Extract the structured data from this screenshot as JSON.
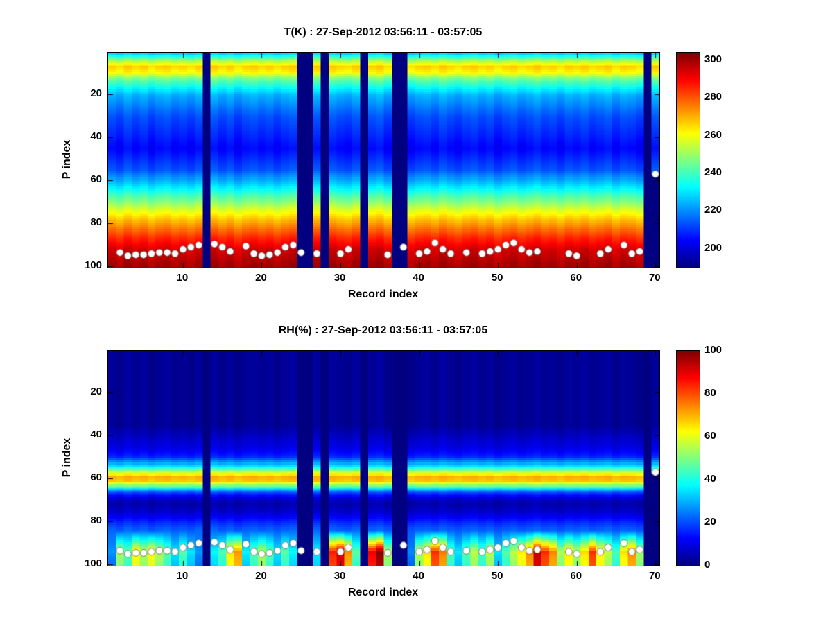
{
  "figure": {
    "background": "#ffffff",
    "axis_color": "#000000",
    "marker_color": "#ffffff"
  },
  "column_jitter": [
    0.3,
    -0.5,
    0.8,
    -0.2,
    0.5,
    -0.7,
    0.2,
    0.6,
    -0.4,
    0.1,
    -0.6,
    0.4,
    0.0,
    0.7,
    -0.3,
    0.5,
    -0.8,
    0.2,
    0.6,
    -0.1,
    0.4,
    -0.5,
    0.3,
    0.8,
    -0.2,
    0.1,
    0.5,
    -0.6,
    0.7,
    0.0,
    -0.4,
    0.6,
    -0.2,
    0.3,
    0.9,
    -0.5,
    0.1,
    0.4,
    -0.7,
    0.2,
    0.5,
    -0.3,
    0.8,
    0.0,
    -0.6,
    0.3,
    0.7,
    -0.2,
    0.4,
    -0.8,
    0.1,
    0.6,
    -0.4,
    0.2,
    0.9,
    -0.1,
    0.3,
    -0.6,
    0.5,
    0.0,
    0.7,
    -0.3,
    0.2,
    0.8,
    -0.5,
    0.4,
    0.1,
    -0.7,
    0.3,
    0.6
  ],
  "chart_data": [
    {
      "type": "heatmap",
      "title": "T(K) : 27-Sep-2012 03:56:11 - 03:57:05",
      "xlabel": "Record index",
      "ylabel": "P index",
      "x_range": [
        1,
        70
      ],
      "y_range": [
        1,
        100
      ],
      "y_axis": "reversed",
      "x_ticks": [
        10,
        20,
        30,
        40,
        50,
        60,
        70
      ],
      "y_ticks": [
        20,
        40,
        60,
        80,
        100
      ],
      "colormap": "jet",
      "clim": [
        190,
        304
      ],
      "colorbar_ticks": [
        200,
        220,
        240,
        260,
        280,
        300
      ],
      "jitter_scale": 2.5,
      "profile_p_vs_value": [
        [
          1,
          228
        ],
        [
          4,
          250
        ],
        [
          7,
          266
        ],
        [
          10,
          261
        ],
        [
          14,
          240
        ],
        [
          20,
          224
        ],
        [
          30,
          213
        ],
        [
          45,
          204
        ],
        [
          55,
          213
        ],
        [
          62,
          228
        ],
        [
          68,
          243
        ],
        [
          74,
          258
        ],
        [
          80,
          272
        ],
        [
          86,
          284
        ],
        [
          92,
          294
        ],
        [
          100,
          300
        ]
      ],
      "missing_record_columns": [
        13,
        25,
        26,
        28,
        33,
        37,
        38,
        69
      ],
      "partial_columns": [
        [
          70,
          57
        ]
      ],
      "surface_markers": [
        [
          2,
          93.5
        ],
        [
          3,
          95
        ],
        [
          4,
          94.5
        ],
        [
          5,
          94.5
        ],
        [
          6,
          94
        ],
        [
          7,
          93.5
        ],
        [
          8,
          93.5
        ],
        [
          9,
          94
        ],
        [
          10,
          92
        ],
        [
          11,
          91
        ],
        [
          12,
          90
        ],
        [
          14,
          89.5
        ],
        [
          15,
          91
        ],
        [
          16,
          93
        ],
        [
          18,
          90.5
        ],
        [
          19,
          94
        ],
        [
          20,
          95
        ],
        [
          21,
          94.5
        ],
        [
          22,
          93.5
        ],
        [
          23,
          91
        ],
        [
          24,
          90
        ],
        [
          25,
          93.5
        ],
        [
          27,
          94
        ],
        [
          30,
          94
        ],
        [
          31,
          92
        ],
        [
          36,
          94.5
        ],
        [
          38,
          91
        ],
        [
          40,
          94
        ],
        [
          41,
          93
        ],
        [
          42,
          89
        ],
        [
          43,
          92
        ],
        [
          44,
          94
        ],
        [
          46,
          93.5
        ],
        [
          48,
          94
        ],
        [
          49,
          93
        ],
        [
          50,
          92
        ],
        [
          51,
          90
        ],
        [
          52,
          89
        ],
        [
          53,
          92
        ],
        [
          54,
          93.5
        ],
        [
          55,
          93
        ],
        [
          59,
          94
        ],
        [
          60,
          95
        ],
        [
          63,
          94
        ],
        [
          64,
          92
        ],
        [
          66,
          90
        ],
        [
          67,
          94
        ],
        [
          68,
          93
        ],
        [
          70,
          57
        ]
      ]
    },
    {
      "type": "heatmap",
      "title": "RH(%) : 27-Sep-2012 03:56:11 - 03:57:05",
      "xlabel": "Record index",
      "ylabel": "P index",
      "x_range": [
        1,
        70
      ],
      "y_range": [
        1,
        100
      ],
      "y_axis": "reversed",
      "x_ticks": [
        10,
        20,
        30,
        40,
        50,
        60,
        70
      ],
      "y_ticks": [
        20,
        40,
        60,
        80,
        100
      ],
      "colormap": "jet",
      "clim": [
        0,
        100
      ],
      "colorbar_ticks": [
        0,
        20,
        40,
        60,
        80,
        100
      ],
      "jitter_scale": 1.5,
      "profile_p_vs_value": [
        [
          1,
          2
        ],
        [
          35,
          2
        ],
        [
          40,
          6
        ],
        [
          46,
          10
        ],
        [
          50,
          16
        ],
        [
          54,
          34
        ],
        [
          57,
          58
        ],
        [
          59,
          70
        ],
        [
          61,
          68
        ],
        [
          63,
          52
        ],
        [
          66,
          22
        ],
        [
          69,
          8
        ],
        [
          72,
          4
        ],
        [
          76,
          8
        ],
        [
          80,
          16
        ],
        [
          84,
          22
        ],
        [
          88,
          16
        ],
        [
          92,
          10
        ],
        [
          96,
          6
        ],
        [
          100,
          4
        ]
      ],
      "missing_record_columns": [
        13,
        25,
        26,
        28,
        33,
        37,
        38,
        69
      ],
      "partial_columns": [
        [
          70,
          57
        ]
      ],
      "bottom_boost": {
        "start_p": 84,
        "ramp": 10,
        "max_add": 95,
        "per_record": [
          0.2,
          0.5,
          0.4,
          0.6,
          0.5,
          0.6,
          0.5,
          0.4,
          0.3,
          0.4,
          0.3,
          0.2,
          0,
          0.3,
          0.4,
          0.6,
          0.7,
          0.3,
          0.4,
          0.5,
          0.4,
          0.3,
          0.4,
          0.3,
          0,
          0.4,
          0.3,
          0,
          0.8,
          0.9,
          0.7,
          0.4,
          0,
          0.85,
          0.95,
          0.5,
          0,
          0.3,
          0.2,
          0.5,
          0.6,
          0.8,
          0.7,
          0.4,
          0.3,
          0.4,
          0.5,
          0.4,
          0.5,
          0.3,
          0.4,
          0.5,
          0.6,
          0.7,
          0.9,
          0.8,
          0.7,
          0.5,
          0.6,
          0.5,
          0.6,
          0.8,
          0.6,
          0.5,
          0.4,
          0.6,
          0.7,
          0.5,
          0,
          0.3
        ]
      },
      "surface_markers": [
        [
          2,
          93.5
        ],
        [
          3,
          95
        ],
        [
          4,
          94.5
        ],
        [
          5,
          94.5
        ],
        [
          6,
          94
        ],
        [
          7,
          93.5
        ],
        [
          8,
          93.5
        ],
        [
          9,
          94
        ],
        [
          10,
          92
        ],
        [
          11,
          91
        ],
        [
          12,
          90
        ],
        [
          14,
          89.5
        ],
        [
          15,
          91
        ],
        [
          16,
          93
        ],
        [
          18,
          90.5
        ],
        [
          19,
          94
        ],
        [
          20,
          95
        ],
        [
          21,
          94.5
        ],
        [
          22,
          93.5
        ],
        [
          23,
          91
        ],
        [
          24,
          90
        ],
        [
          25,
          93.5
        ],
        [
          27,
          94
        ],
        [
          30,
          94
        ],
        [
          31,
          92
        ],
        [
          36,
          94.5
        ],
        [
          38,
          91
        ],
        [
          40,
          94
        ],
        [
          41,
          93
        ],
        [
          42,
          89
        ],
        [
          43,
          92
        ],
        [
          44,
          94
        ],
        [
          46,
          93.5
        ],
        [
          48,
          94
        ],
        [
          49,
          93
        ],
        [
          50,
          92
        ],
        [
          51,
          90
        ],
        [
          52,
          89
        ],
        [
          53,
          92
        ],
        [
          54,
          93.5
        ],
        [
          55,
          93
        ],
        [
          59,
          94
        ],
        [
          60,
          95
        ],
        [
          63,
          94
        ],
        [
          64,
          92
        ],
        [
          66,
          90
        ],
        [
          67,
          94
        ],
        [
          68,
          93
        ],
        [
          70,
          57
        ]
      ]
    }
  ]
}
